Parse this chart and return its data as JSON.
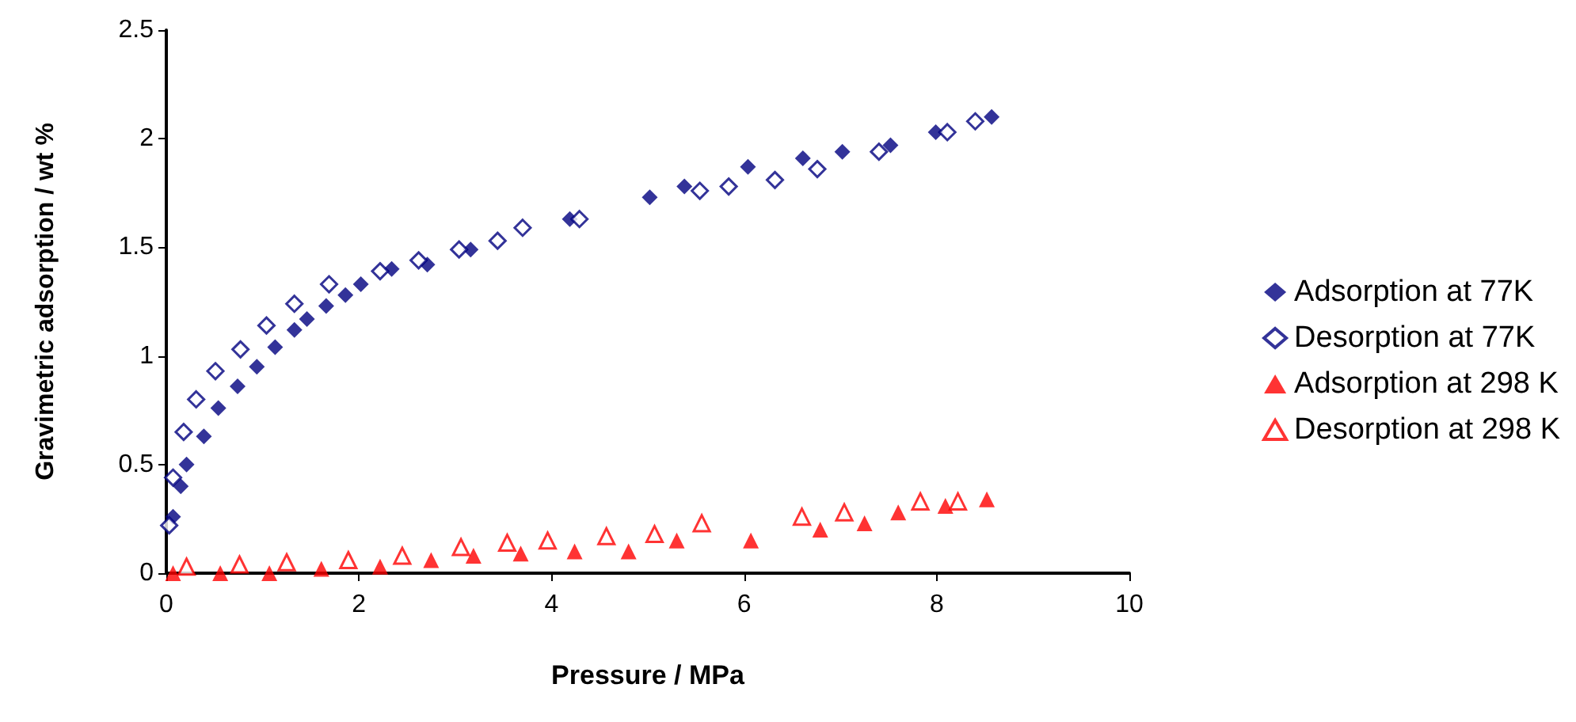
{
  "chart_data": {
    "type": "scatter",
    "xlabel": "Pressure / MPa",
    "ylabel": "Gravimetric adsorption / wt %",
    "xlim": [
      0,
      10
    ],
    "xticks": [
      0,
      2,
      4,
      6,
      8,
      10
    ],
    "ylim": [
      0,
      2.5
    ],
    "yticks": [
      0,
      0.5,
      1,
      1.5,
      2,
      2.5
    ],
    "grid": false,
    "legend": "right",
    "series": [
      {
        "name": "Adsorption at 77K",
        "color": "#000080",
        "marker": "diamond",
        "x": [
          0.07,
          0.15,
          0.21,
          0.39,
          0.54,
          0.74,
          0.94,
          1.13,
          1.33,
          1.46,
          1.66,
          1.86,
          2.02,
          2.34,
          2.71,
          3.16,
          4.19,
          5.02,
          5.38,
          6.04,
          6.61,
          7.02,
          7.52,
          7.99,
          8.57
        ],
        "values": [
          0.26,
          0.4,
          0.5,
          0.63,
          0.76,
          0.86,
          0.95,
          1.04,
          1.12,
          1.17,
          1.23,
          1.28,
          1.33,
          1.4,
          1.42,
          1.49,
          1.63,
          1.73,
          1.78,
          1.87,
          1.91,
          1.94,
          1.97,
          2.03,
          2.1
        ]
      },
      {
        "name": "Desorption at 77K",
        "color": "#000080",
        "marker": "diamond-open",
        "x": [
          0.03,
          0.07,
          0.18,
          0.31,
          0.51,
          0.77,
          1.04,
          1.33,
          1.69,
          2.22,
          2.62,
          3.04,
          3.44,
          3.7,
          4.29,
          5.54,
          5.84,
          6.32,
          6.76,
          7.4,
          8.11,
          8.4
        ],
        "values": [
          0.22,
          0.44,
          0.65,
          0.8,
          0.93,
          1.03,
          1.14,
          1.24,
          1.33,
          1.39,
          1.44,
          1.49,
          1.53,
          1.59,
          1.63,
          1.76,
          1.78,
          1.81,
          1.86,
          1.94,
          2.03,
          2.08
        ]
      },
      {
        "name": "Adsorption at 298 K",
        "color": "#ff0000",
        "marker": "triangle",
        "x": [
          0.07,
          0.56,
          1.07,
          1.61,
          2.22,
          2.75,
          3.19,
          3.68,
          4.24,
          4.8,
          5.3,
          6.07,
          6.79,
          7.25,
          7.6,
          8.09,
          8.52
        ],
        "values": [
          0,
          0,
          0,
          0.02,
          0.03,
          0.06,
          0.08,
          0.09,
          0.1,
          0.1,
          0.15,
          0.15,
          0.2,
          0.23,
          0.28,
          0.31,
          0.34
        ]
      },
      {
        "name": "Desorption at 298 K",
        "color": "#ff0000",
        "marker": "triangle-open",
        "x": [
          0.21,
          0.76,
          1.25,
          1.89,
          2.45,
          3.06,
          3.54,
          3.96,
          4.57,
          5.07,
          5.56,
          6.6,
          7.04,
          7.83,
          8.22
        ],
        "values": [
          0.03,
          0.04,
          0.05,
          0.06,
          0.08,
          0.12,
          0.14,
          0.15,
          0.17,
          0.18,
          0.23,
          0.26,
          0.28,
          0.33,
          0.33
        ]
      }
    ]
  }
}
